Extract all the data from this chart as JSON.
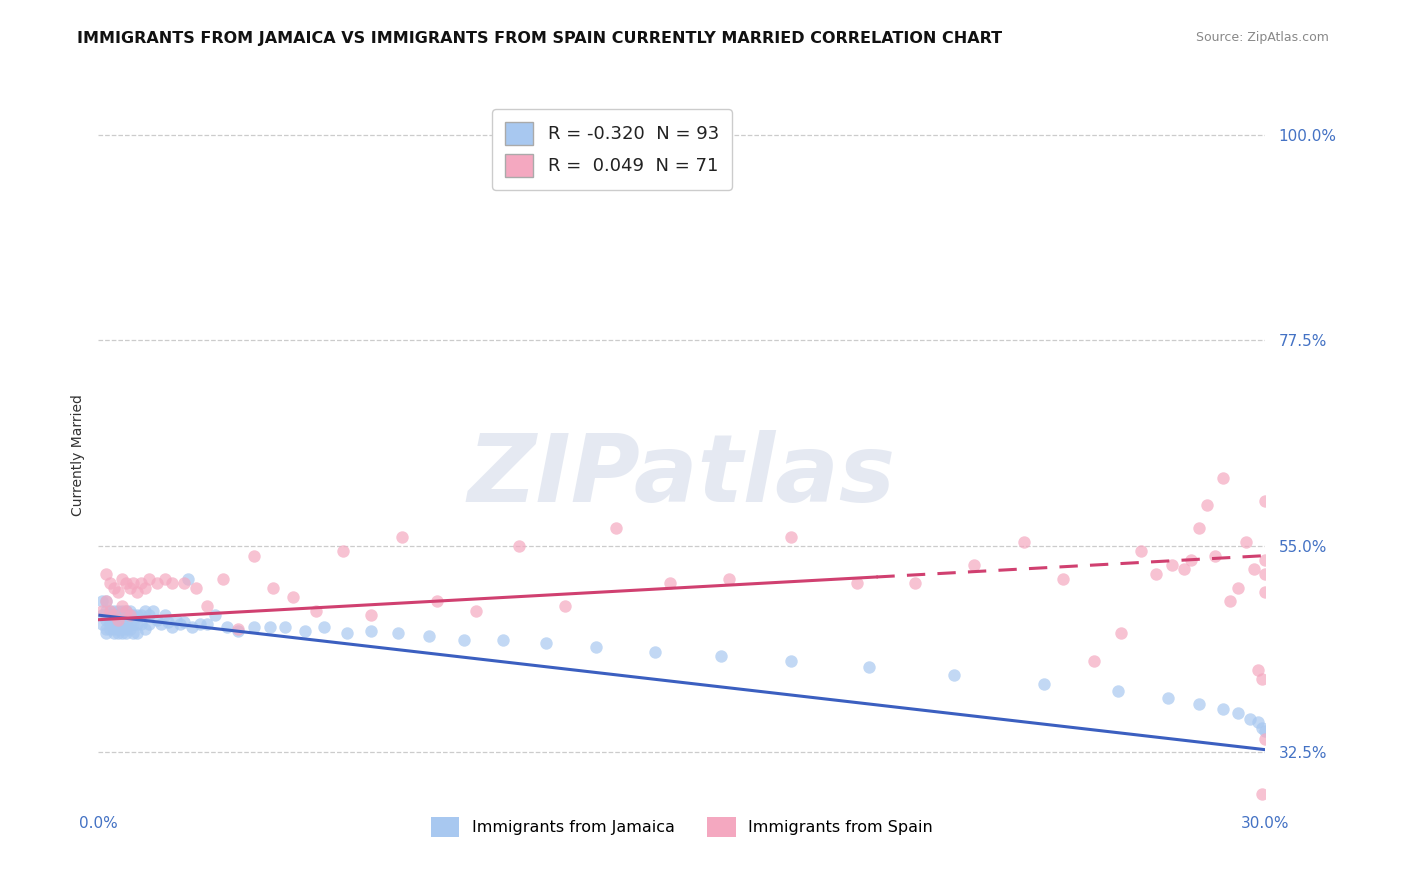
{
  "title": "IMMIGRANTS FROM JAMAICA VS IMMIGRANTS FROM SPAIN CURRENTLY MARRIED CORRELATION CHART",
  "source": "Source: ZipAtlas.com",
  "ylabel": "Currently Married",
  "xmin": 0.0,
  "xmax": 0.3,
  "ymin": 0.27,
  "ymax": 1.03,
  "ytick_vals": [
    0.325,
    0.55,
    0.775,
    1.0
  ],
  "ytick_labels": [
    "32.5%",
    "55.0%",
    "77.5%",
    "100.0%"
  ],
  "legend_label1": "Immigrants from Jamaica",
  "legend_label2": "Immigrants from Spain",
  "R1": -0.32,
  "N1": 93,
  "R2": 0.049,
  "N2": 71,
  "color_jamaica": "#a8c8f0",
  "color_spain": "#f4a8c0",
  "color_trend_jamaica": "#3b5fc0",
  "color_trend_spain": "#d04070",
  "watermark": "ZIPatlas",
  "title_fontsize": 11.5,
  "axis_label_fontsize": 10,
  "tick_fontsize": 11,
  "jamaica_x": [
    0.001,
    0.001,
    0.001,
    0.002,
    0.002,
    0.002,
    0.002,
    0.002,
    0.003,
    0.003,
    0.003,
    0.003,
    0.003,
    0.004,
    0.004,
    0.004,
    0.004,
    0.004,
    0.005,
    0.005,
    0.005,
    0.005,
    0.005,
    0.006,
    0.006,
    0.006,
    0.006,
    0.006,
    0.007,
    0.007,
    0.007,
    0.007,
    0.007,
    0.008,
    0.008,
    0.008,
    0.008,
    0.009,
    0.009,
    0.009,
    0.01,
    0.01,
    0.01,
    0.011,
    0.011,
    0.012,
    0.012,
    0.013,
    0.013,
    0.014,
    0.015,
    0.016,
    0.017,
    0.018,
    0.019,
    0.02,
    0.021,
    0.022,
    0.023,
    0.024,
    0.026,
    0.028,
    0.03,
    0.033,
    0.036,
    0.04,
    0.044,
    0.048,
    0.053,
    0.058,
    0.064,
    0.07,
    0.077,
    0.085,
    0.094,
    0.104,
    0.115,
    0.128,
    0.143,
    0.16,
    0.178,
    0.198,
    0.22,
    0.243,
    0.262,
    0.275,
    0.283,
    0.289,
    0.293,
    0.296,
    0.298,
    0.299,
    0.3
  ],
  "jamaica_y": [
    0.49,
    0.475,
    0.465,
    0.48,
    0.47,
    0.46,
    0.455,
    0.49,
    0.475,
    0.465,
    0.48,
    0.47,
    0.46,
    0.475,
    0.465,
    0.48,
    0.46,
    0.455,
    0.475,
    0.465,
    0.48,
    0.46,
    0.455,
    0.475,
    0.465,
    0.48,
    0.46,
    0.455,
    0.475,
    0.465,
    0.48,
    0.46,
    0.455,
    0.475,
    0.465,
    0.48,
    0.46,
    0.475,
    0.465,
    0.455,
    0.475,
    0.465,
    0.455,
    0.475,
    0.465,
    0.48,
    0.46,
    0.475,
    0.465,
    0.48,
    0.47,
    0.465,
    0.475,
    0.468,
    0.462,
    0.47,
    0.465,
    0.468,
    0.515,
    0.462,
    0.465,
    0.465,
    0.475,
    0.462,
    0.458,
    0.462,
    0.462,
    0.462,
    0.458,
    0.462,
    0.455,
    0.458,
    0.455,
    0.452,
    0.448,
    0.448,
    0.445,
    0.44,
    0.435,
    0.43,
    0.425,
    0.418,
    0.41,
    0.4,
    0.392,
    0.385,
    0.378,
    0.372,
    0.368,
    0.362,
    0.358,
    0.352,
    0.348
  ],
  "spain_x": [
    0.001,
    0.002,
    0.002,
    0.003,
    0.003,
    0.004,
    0.004,
    0.005,
    0.005,
    0.006,
    0.006,
    0.007,
    0.007,
    0.008,
    0.008,
    0.009,
    0.01,
    0.011,
    0.012,
    0.013,
    0.015,
    0.017,
    0.019,
    0.022,
    0.025,
    0.028,
    0.032,
    0.036,
    0.04,
    0.045,
    0.05,
    0.056,
    0.063,
    0.07,
    0.078,
    0.087,
    0.097,
    0.108,
    0.12,
    0.133,
    0.147,
    0.162,
    0.178,
    0.195,
    0.21,
    0.225,
    0.238,
    0.248,
    0.256,
    0.263,
    0.268,
    0.272,
    0.276,
    0.279,
    0.281,
    0.283,
    0.285,
    0.287,
    0.289,
    0.291,
    0.293,
    0.295,
    0.297,
    0.298,
    0.299,
    0.299,
    0.3,
    0.3,
    0.3,
    0.3,
    0.3
  ],
  "spain_y": [
    0.48,
    0.52,
    0.49,
    0.51,
    0.48,
    0.505,
    0.475,
    0.5,
    0.47,
    0.515,
    0.485,
    0.51,
    0.48,
    0.505,
    0.475,
    0.51,
    0.5,
    0.51,
    0.505,
    0.515,
    0.51,
    0.515,
    0.51,
    0.51,
    0.505,
    0.485,
    0.515,
    0.46,
    0.54,
    0.505,
    0.495,
    0.48,
    0.545,
    0.475,
    0.56,
    0.49,
    0.48,
    0.55,
    0.485,
    0.57,
    0.51,
    0.515,
    0.56,
    0.51,
    0.51,
    0.53,
    0.555,
    0.515,
    0.425,
    0.455,
    0.545,
    0.52,
    0.53,
    0.525,
    0.535,
    0.57,
    0.595,
    0.54,
    0.625,
    0.49,
    0.505,
    0.555,
    0.525,
    0.415,
    0.28,
    0.405,
    0.34,
    0.6,
    0.535,
    0.52,
    0.5
  ],
  "trend_j_x0": 0.0,
  "trend_j_y0": 0.475,
  "trend_j_x1": 0.3,
  "trend_j_y1": 0.328,
  "trend_s_x0": 0.0,
  "trend_s_y0": 0.47,
  "trend_s_x1": 0.3,
  "trend_s_y1": 0.54,
  "trend_s_solid_end": 0.2
}
